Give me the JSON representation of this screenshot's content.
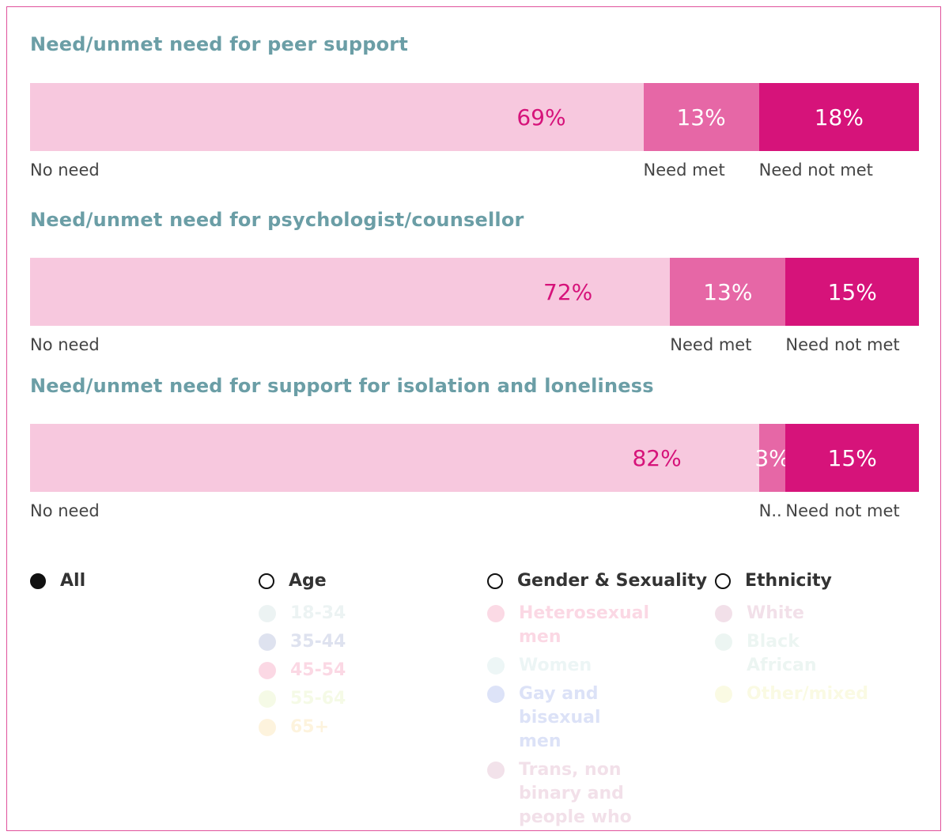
{
  "colors": {
    "no_need": "#f7c8de",
    "need_met": "#e667a6",
    "need_not_met": "#d6137a",
    "title": "#6b9ea6",
    "frame": "#e0529c"
  },
  "chart_data": [
    {
      "type": "bar",
      "stacked": true,
      "orientation": "horizontal",
      "title": "Need/unmet need for peer support",
      "categories": [
        "No need",
        "Need met",
        "Need not met"
      ],
      "values": [
        69,
        13,
        18
      ],
      "labels": [
        "69%",
        "13%",
        "18%"
      ],
      "category_labels": [
        "No need",
        "Need met",
        "Need not met"
      ]
    },
    {
      "type": "bar",
      "stacked": true,
      "orientation": "horizontal",
      "title": "Need/unmet need for psychologist/counsellor",
      "categories": [
        "No need",
        "Need met",
        "Need not met"
      ],
      "values": [
        72,
        13,
        15
      ],
      "labels": [
        "72%",
        "13%",
        "15%"
      ],
      "category_labels": [
        "No need",
        "Need met",
        "Need not met"
      ]
    },
    {
      "type": "bar",
      "stacked": true,
      "orientation": "horizontal",
      "title": "Need/unmet need for support for isolation and loneliness",
      "categories": [
        "No need",
        "Need met",
        "Need not met"
      ],
      "values": [
        82,
        3,
        15
      ],
      "labels": [
        "82%",
        "3%",
        "15%"
      ],
      "category_labels": [
        "No need",
        "N..",
        "Need not met"
      ]
    }
  ],
  "legend": {
    "groups": [
      {
        "label": "All",
        "selected": true,
        "items": []
      },
      {
        "label": "Age",
        "selected": false,
        "items": [
          {
            "label": "18-34",
            "color": "#8fb6b6"
          },
          {
            "label": "35-44",
            "color": "#3a4fa0"
          },
          {
            "label": "45-54",
            "color": "#e8175d"
          },
          {
            "label": "55-64",
            "color": "#c7e66b"
          },
          {
            "label": "65+",
            "color": "#f7b733"
          }
        ]
      },
      {
        "label": "Gender & Sexuality",
        "selected": false,
        "items": [
          {
            "label": "Heterosexual men",
            "color": "#e8175d"
          },
          {
            "label": "Women",
            "color": "#8fc7c7"
          },
          {
            "label": "Gay and bisexual men",
            "color": "#2d4fd1"
          },
          {
            "label": "Trans, non binary and people who",
            "color": "#b0487a"
          }
        ]
      },
      {
        "label": "Ethnicity",
        "selected": false,
        "items": [
          {
            "label": "White",
            "color": "#b0487a"
          },
          {
            "label": "Black African",
            "color": "#8fc7b0"
          },
          {
            "label": "Other/mixed",
            "color": "#e5e65a"
          }
        ]
      }
    ]
  }
}
